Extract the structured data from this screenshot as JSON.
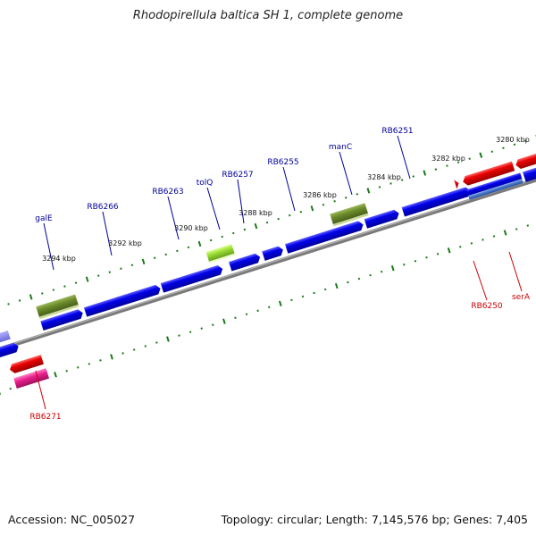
{
  "title": "Rhodopirellula baltica SH 1, complete genome",
  "footer": {
    "accession": "Accession: NC_005027",
    "topology": "Topology: circular; Length: 7,145,576 bp; Genes: 7,405"
  },
  "ruler_labels": [
    "3280 kbp",
    "3282 kbp",
    "3284 kbp",
    "3286 kbp",
    "3288 kbp",
    "3290 kbp",
    "3292 kbp",
    "3294 kbp"
  ],
  "gene_labels_top": [
    "RB6251",
    "manC",
    "RB6255",
    "RB6257",
    "tolQ",
    "RB6263",
    "RB6266",
    "galE"
  ],
  "gene_labels_bottom": [
    "serA",
    "RB6250",
    "RB6271"
  ],
  "colors": {
    "backbone": "#888888",
    "forward_gene": "#0000e8",
    "reverse_gene": "#e80000",
    "olive_gene": "#6b8a2a",
    "lime_gene": "#99dd33",
    "pink_gene": "#e8208e",
    "steel_gene": "#4a7bd0",
    "ticks": "#1a7a1a",
    "top_labels": "#000099",
    "bottom_labels": "#cc0000"
  }
}
